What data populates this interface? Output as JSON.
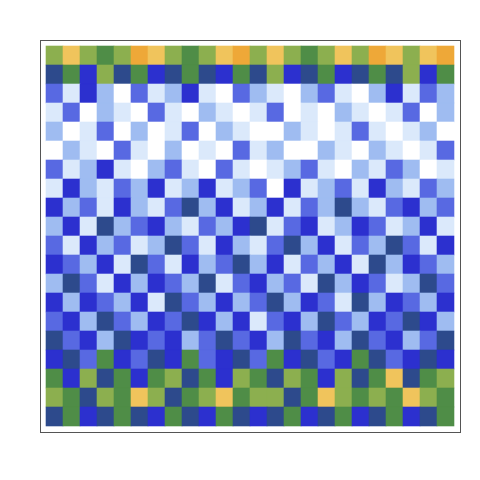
{
  "chart_data": {
    "type": "heatmap",
    "tick_labels": false,
    "zlim": [
      0,
      9
    ],
    "cells": [
      [
        7,
        8,
        7,
        6,
        7,
        9,
        8,
        7,
        6,
        7,
        8,
        9,
        7,
        8,
        7,
        6,
        7,
        8,
        7,
        9,
        8,
        7,
        8,
        9
      ],
      [
        5,
        6,
        4,
        7,
        5,
        6,
        4,
        5,
        6,
        5,
        4,
        6,
        5,
        7,
        4,
        5,
        6,
        4,
        5,
        6,
        5,
        7,
        4,
        6
      ],
      [
        3,
        1,
        4,
        2,
        0,
        3,
        1,
        2,
        4,
        1,
        0,
        3,
        2,
        1,
        0,
        2,
        3,
        1,
        0,
        2,
        4,
        1,
        3,
        2
      ],
      [
        1,
        3,
        0,
        2,
        1,
        0,
        3,
        1,
        0,
        2,
        1,
        0,
        1,
        3,
        0,
        1,
        0,
        2,
        1,
        0,
        1,
        3,
        0,
        2
      ],
      [
        2,
        0,
        1,
        3,
        0,
        2,
        0,
        1,
        3,
        0,
        2,
        1,
        0,
        0,
        2,
        1,
        0,
        1,
        3,
        1,
        0,
        1,
        2,
        0
      ],
      [
        0,
        2,
        1,
        0,
        3,
        1,
        0,
        2,
        0,
        1,
        0,
        3,
        1,
        2,
        0,
        0,
        2,
        1,
        0,
        2,
        1,
        0,
        1,
        3
      ],
      [
        3,
        1,
        2,
        4,
        1,
        0,
        2,
        3,
        1,
        0,
        3,
        1,
        0,
        1,
        2,
        3,
        1,
        0,
        2,
        1,
        3,
        2,
        0,
        1
      ],
      [
        1,
        4,
        2,
        1,
        3,
        2,
        4,
        1,
        2,
        4,
        1,
        2,
        3,
        0,
        4,
        1,
        2,
        3,
        1,
        4,
        2,
        1,
        3,
        2
      ],
      [
        4,
        2,
        3,
        1,
        4,
        2,
        1,
        3,
        5,
        2,
        4,
        1,
        2,
        4,
        1,
        3,
        2,
        5,
        2,
        1,
        3,
        4,
        2,
        3
      ],
      [
        2,
        4,
        1,
        5,
        2,
        3,
        4,
        2,
        1,
        3,
        2,
        4,
        5,
        1,
        3,
        4,
        1,
        2,
        4,
        3,
        1,
        2,
        4,
        1
      ],
      [
        3,
        1,
        4,
        2,
        3,
        1,
        2,
        5,
        3,
        1,
        4,
        2,
        1,
        3,
        5,
        2,
        4,
        1,
        3,
        2,
        5,
        3,
        1,
        4
      ],
      [
        4,
        3,
        2,
        4,
        1,
        5,
        3,
        1,
        4,
        2,
        3,
        5,
        2,
        4,
        1,
        3,
        2,
        4,
        1,
        5,
        2,
        4,
        3,
        2
      ],
      [
        2,
        5,
        3,
        1,
        4,
        2,
        4,
        3,
        2,
        5,
        1,
        3,
        4,
        2,
        3,
        1,
        5,
        2,
        4,
        3,
        1,
        2,
        5,
        3
      ],
      [
        4,
        2,
        4,
        3,
        2,
        4,
        1,
        5,
        3,
        2,
        4,
        2,
        3,
        5,
        2,
        4,
        3,
        1,
        5,
        2,
        4,
        3,
        2,
        4
      ],
      [
        3,
        4,
        2,
        5,
        3,
        2,
        4,
        3,
        5,
        4,
        2,
        4,
        1,
        3,
        4,
        2,
        5,
        3,
        2,
        4,
        3,
        5,
        4,
        2
      ],
      [
        5,
        3,
        4,
        2,
        5,
        4,
        3,
        4,
        2,
        3,
        5,
        3,
        4,
        2,
        5,
        3,
        4,
        2,
        5,
        3,
        4,
        2,
        3,
        5
      ],
      [
        4,
        5,
        3,
        6,
        4,
        3,
        5,
        4,
        6,
        3,
        4,
        5,
        3,
        6,
        4,
        5,
        3,
        4,
        6,
        5,
        3,
        4,
        5,
        4
      ],
      [
        6,
        4,
        7,
        5,
        6,
        4,
        6,
        7,
        5,
        6,
        4,
        7,
        6,
        5,
        7,
        6,
        4,
        7,
        5,
        6,
        8,
        5,
        6,
        7
      ],
      [
        7,
        6,
        5,
        7,
        6,
        8,
        7,
        5,
        6,
        7,
        8,
        6,
        7,
        7,
        5,
        6,
        8,
        7,
        6,
        7,
        6,
        8,
        7,
        6
      ],
      [
        5,
        6,
        4,
        5,
        6,
        5,
        4,
        6,
        5,
        4,
        6,
        5,
        4,
        5,
        6,
        4,
        5,
        6,
        4,
        5,
        6,
        4,
        5,
        6
      ]
    ]
  }
}
